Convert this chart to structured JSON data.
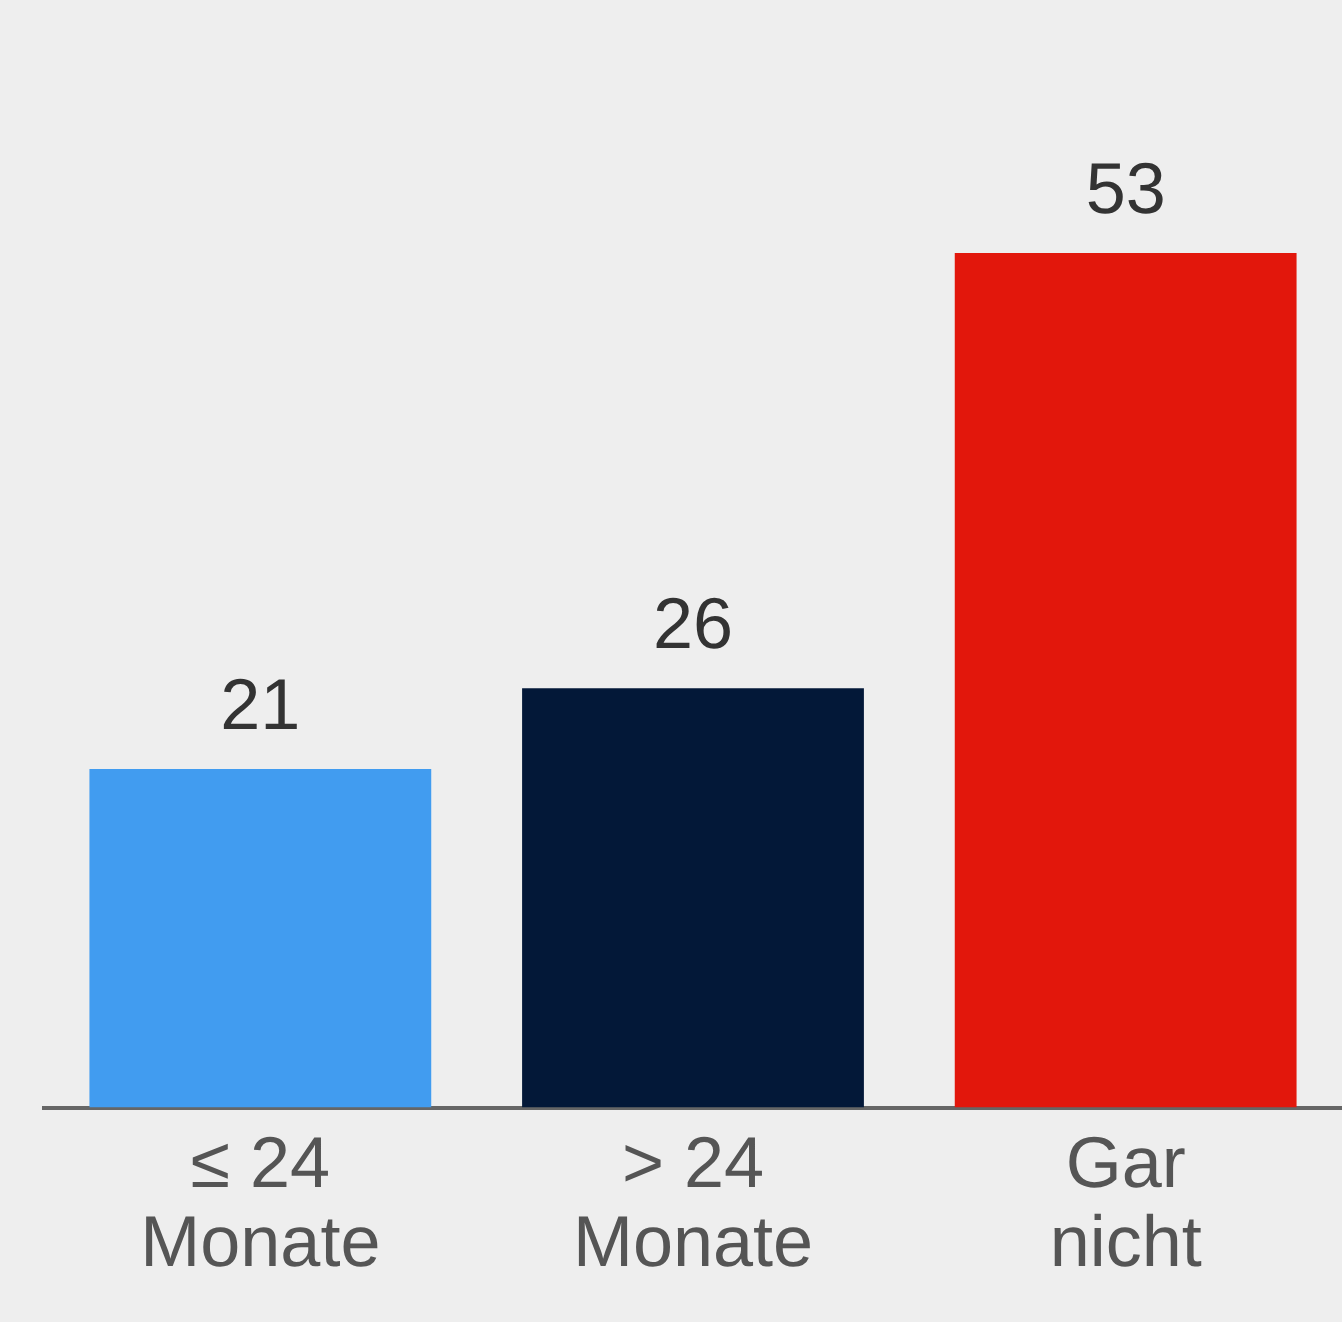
{
  "chart_data": {
    "type": "bar",
    "categories": [
      "≤ 24\nMonate",
      "> 24\nMonate",
      "Gar\nnicht"
    ],
    "values": [
      21,
      26,
      53
    ],
    "colors": [
      "#419cf0",
      "#031838",
      "#e2170c"
    ],
    "data_labels": true,
    "grid": false,
    "legend": false
  }
}
